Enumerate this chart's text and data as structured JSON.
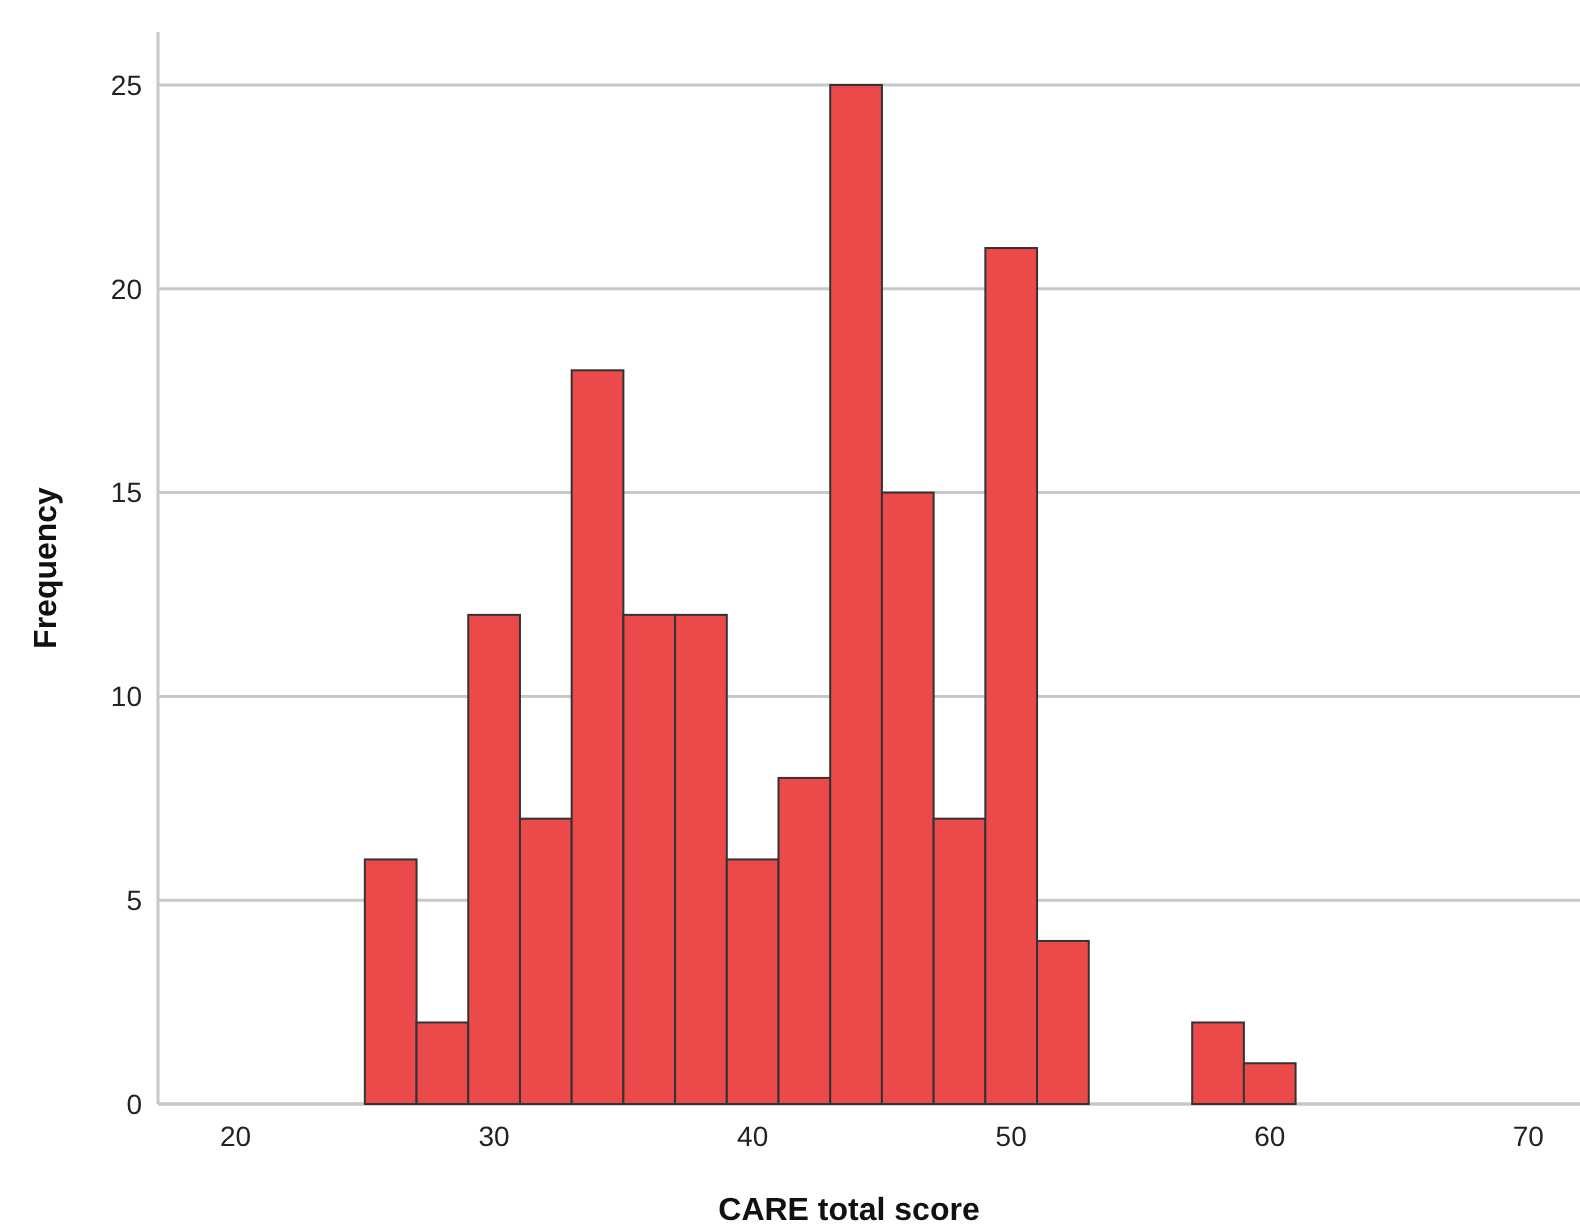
{
  "chart_data": {
    "type": "histogram",
    "xlabel": "CARE total score",
    "ylabel": "Frequency",
    "bins": [
      25,
      27,
      29,
      31,
      33,
      35,
      37,
      39,
      41,
      43,
      45,
      47,
      49,
      51,
      53,
      55,
      57,
      59,
      61
    ],
    "values": [
      6,
      2,
      12,
      7,
      18,
      12,
      12,
      6,
      8,
      25,
      15,
      7,
      21,
      4,
      0,
      0,
      2,
      1
    ],
    "color": "#ec4a4a",
    "xlim": [
      17,
      72
    ],
    "xticks": [
      20,
      30,
      40,
      50,
      60,
      70
    ],
    "ylim": [
      0,
      26.3
    ],
    "yticks": [
      0,
      5,
      10,
      15,
      20,
      25
    ],
    "grid": "y"
  }
}
